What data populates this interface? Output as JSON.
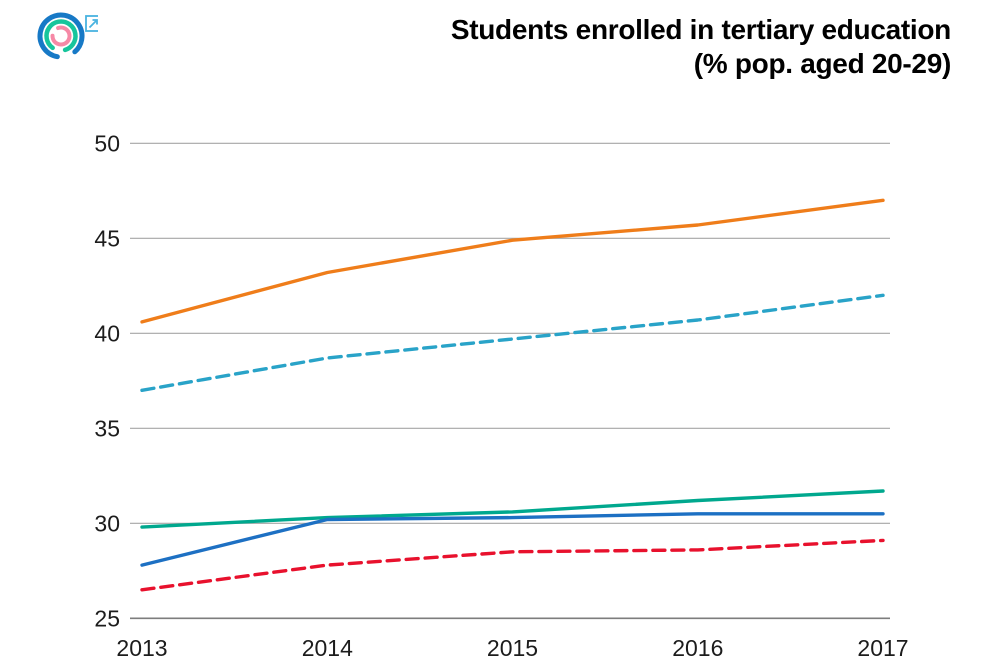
{
  "header": {
    "title_line1": "Students enrolled in tertiary education",
    "title_line2": "(% pop. aged 20-29)",
    "logo": {
      "outer_ring_color": "#1779c6",
      "middle_ring_color": "#17c59c",
      "inner_ring_color": "#f689a6"
    },
    "external_link_icon_color": "#49b3e0"
  },
  "chart_data": {
    "type": "line",
    "title": "Students enrolled in tertiary education (% pop. aged 20-29)",
    "x": [
      2013,
      2014,
      2015,
      2016,
      2017
    ],
    "x_tick_labels": [
      "2013",
      "2014",
      "2015",
      "2016",
      "2017"
    ],
    "y_ticks": [
      25,
      30,
      35,
      40,
      45,
      50
    ],
    "ylim": [
      25,
      50
    ],
    "grid": "horizontal",
    "legend": "none",
    "axis_text_color": "#1c1c1c",
    "gridline_color": "#a6a6a6",
    "baseline_color": "#7d7d7d",
    "series": [
      {
        "name": "series-orange-solid",
        "color": "#ef7d1a",
        "style": "solid",
        "values": [
          40.6,
          43.2,
          44.9,
          45.7,
          47.0
        ]
      },
      {
        "name": "series-teal-dashed",
        "color": "#29a3c8",
        "style": "dashed",
        "values": [
          37.0,
          38.7,
          39.7,
          40.7,
          42.0
        ]
      },
      {
        "name": "series-green-solid",
        "color": "#00a88e",
        "style": "solid",
        "values": [
          29.8,
          30.3,
          30.6,
          31.2,
          31.7
        ]
      },
      {
        "name": "series-blue-solid",
        "color": "#1d70c3",
        "style": "solid",
        "values": [
          27.8,
          30.2,
          30.3,
          30.5,
          30.5
        ]
      },
      {
        "name": "series-red-dashed",
        "color": "#e8112d",
        "style": "dashed",
        "values": [
          26.5,
          27.8,
          28.5,
          28.6,
          29.1
        ]
      }
    ]
  }
}
